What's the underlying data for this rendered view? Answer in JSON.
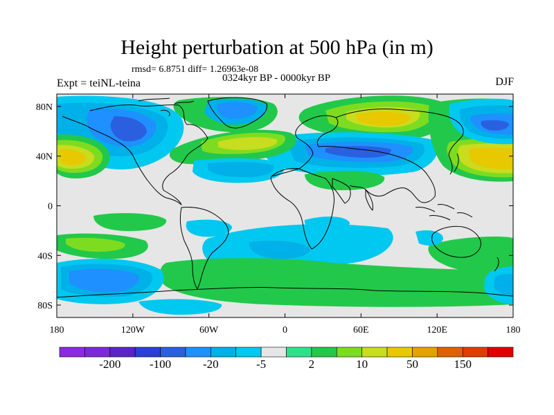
{
  "title": "Height perturbation at 500 hPa (in m)",
  "subtitle_stats": "rmsd= 6.8751 diff= 1.26963e-08",
  "subtitle_period": "0324kyr BP - 0000kyr BP",
  "experiment": "Expt = teiNL-teina",
  "season": "DJF",
  "lat_ticks": [
    "80N",
    "40N",
    "0",
    "40S",
    "80S"
  ],
  "lon_ticks": [
    "180",
    "120W",
    "60W",
    "0",
    "60E",
    "120E",
    "180"
  ],
  "colorbar": {
    "labels": [
      "-200",
      "-100",
      "-20",
      "-5",
      "2",
      "10",
      "50",
      "150"
    ],
    "colors": [
      "#8a2be2",
      "#7a2ad8",
      "#5a24c8",
      "#2a40d8",
      "#2a60e0",
      "#1e90ff",
      "#00b0e8",
      "#00c8f0",
      "#e6e6e6",
      "#2ee08a",
      "#22c84a",
      "#7edc20",
      "#c8dc20",
      "#e8c800",
      "#e8a000",
      "#e06000",
      "#e03c00",
      "#e00000"
    ]
  },
  "colors": {
    "land_fill": "#e6e6e6",
    "coast": "#000000"
  }
}
